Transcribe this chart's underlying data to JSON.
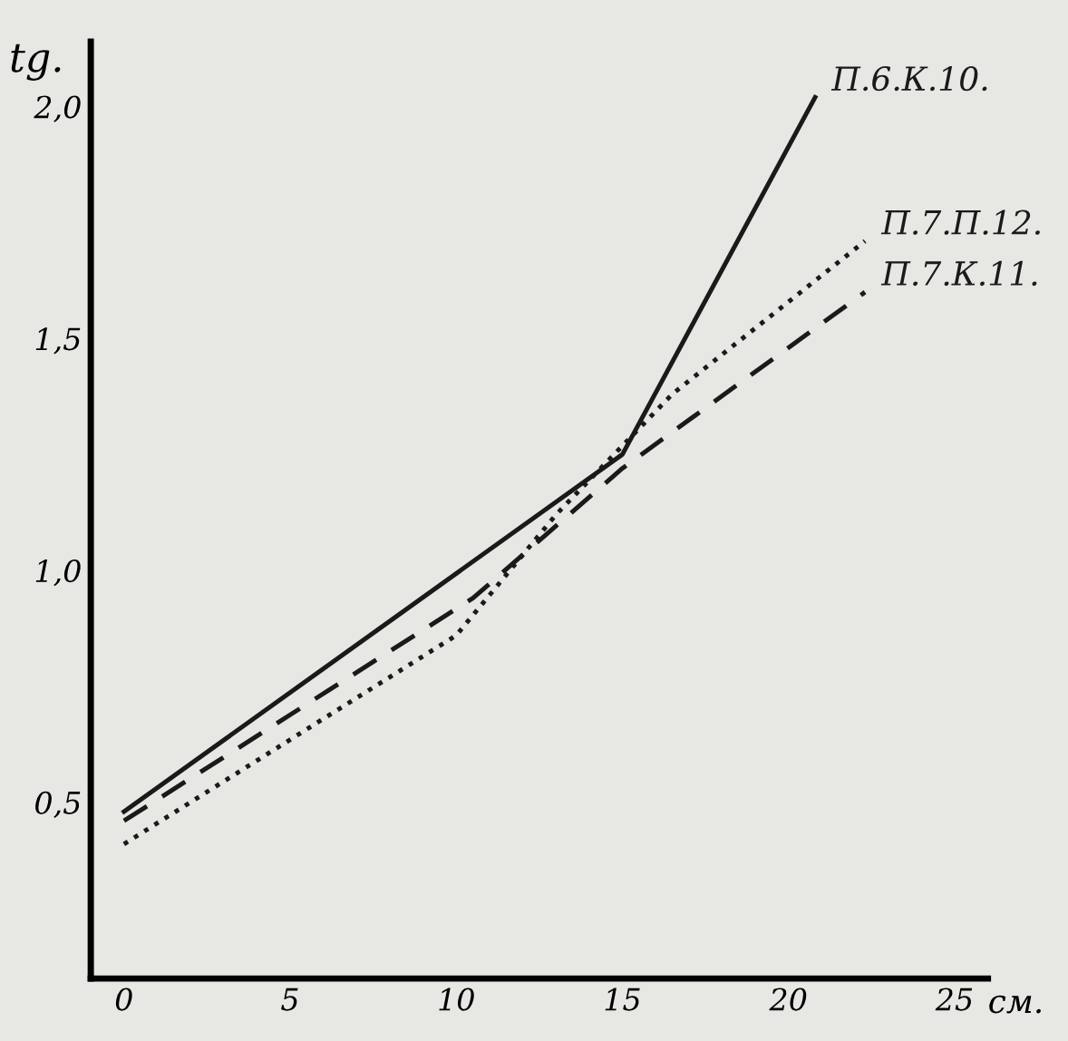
{
  "chart_data": {
    "type": "line",
    "ylabel": "tg.",
    "xlabel": "см.",
    "series": [
      {
        "name": "П.6.К.10.",
        "color": "#1a1a1a",
        "line_style": "solid",
        "x": [
          0,
          15,
          20.8
        ],
        "values": [
          0.48,
          1.25,
          2.02
        ]
      },
      {
        "name": "П.7.П.12.",
        "color": "#1a1a1a",
        "line_style": "dotted",
        "x": [
          0,
          10,
          13,
          16.5,
          22.3
        ],
        "values": [
          0.41,
          0.86,
          1.12,
          1.38,
          1.71
        ]
      },
      {
        "name": "П.7.К.11.",
        "color": "#1a1a1a",
        "line_style": "dashed",
        "x": [
          0,
          10.5,
          15,
          22.3
        ],
        "values": [
          0.46,
          0.94,
          1.22,
          1.6
        ]
      }
    ],
    "xlim": [
      -1,
      26
    ],
    "xticks": [
      0,
      5,
      10,
      15,
      20,
      25
    ],
    "ylim": [
      0.12,
      2.14
    ],
    "yticks": [
      {
        "value": 0.5,
        "label": "0,5"
      },
      {
        "value": 1.0,
        "label": "1,0"
      },
      {
        "value": 1.5,
        "label": "1,5"
      },
      {
        "value": 2.0,
        "label": "2,0"
      }
    ],
    "grid": false,
    "legend": false
  }
}
